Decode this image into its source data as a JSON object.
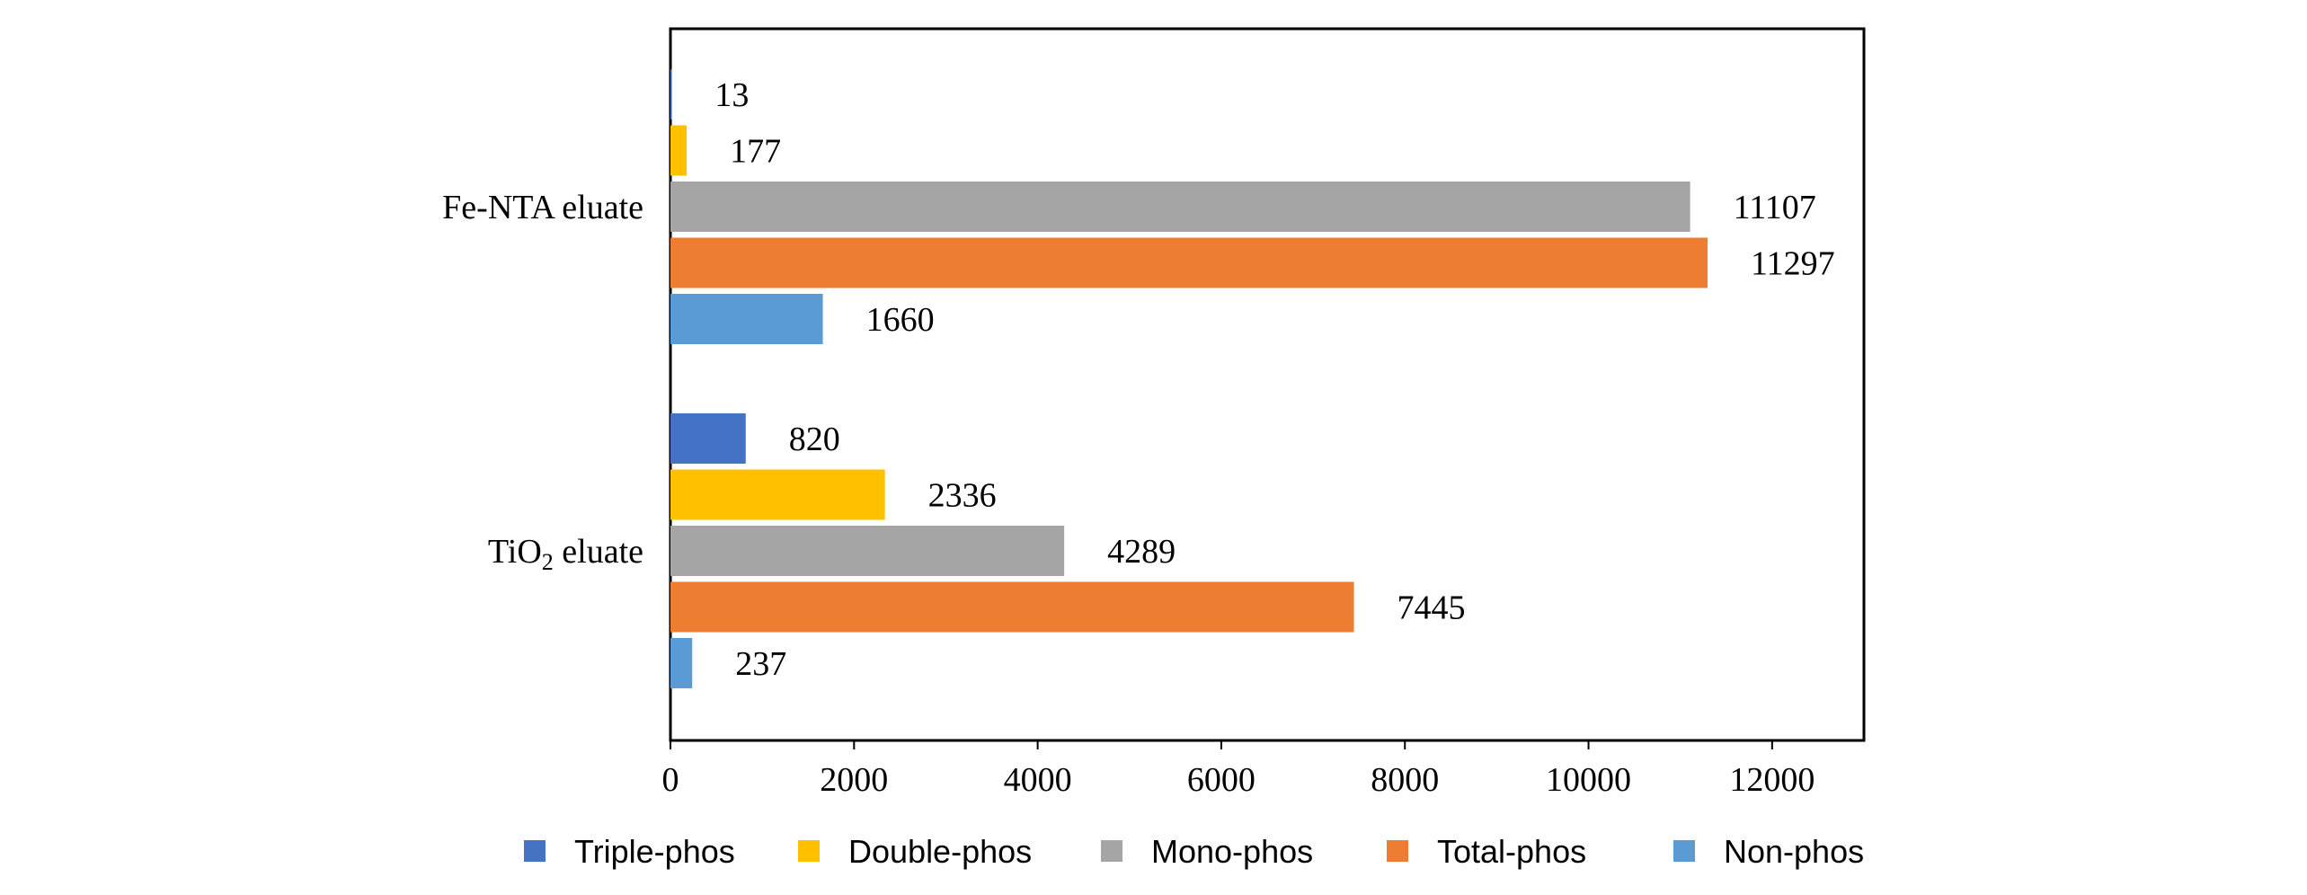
{
  "chart_data": {
    "type": "bar",
    "orientation": "horizontal",
    "categories": [
      {
        "prefix": "Fe-NTA eluate",
        "subscript": "",
        "suffix": ""
      },
      {
        "prefix": "TiO",
        "subscript": "2",
        "suffix": " eluate"
      }
    ],
    "series": [
      {
        "name": "Non-phos",
        "color": "#5B9BD5",
        "values": [
          1660,
          237
        ]
      },
      {
        "name": "Total-phos",
        "color": "#ED7D31",
        "values": [
          11297,
          7445
        ]
      },
      {
        "name": "Mono-phos",
        "color": "#A5A5A5",
        "values": [
          11107,
          4289
        ]
      },
      {
        "name": "Double-phos",
        "color": "#FFC000",
        "values": [
          177,
          2336
        ]
      },
      {
        "name": "Triple-phos",
        "color": "#4472C4",
        "values": [
          13,
          820
        ]
      }
    ],
    "legend_order": [
      "Triple-phos",
      "Double-phos",
      "Mono-phos",
      "Total-phos",
      "Non-phos"
    ],
    "xlim": [
      0,
      13000
    ],
    "xticks": [
      "0",
      "2000",
      "4000",
      "6000",
      "8000",
      "10000",
      "12000"
    ],
    "grid": false,
    "legend_position": "bottom",
    "data_labels": true,
    "title": "",
    "xlabel": "",
    "ylabel": ""
  }
}
